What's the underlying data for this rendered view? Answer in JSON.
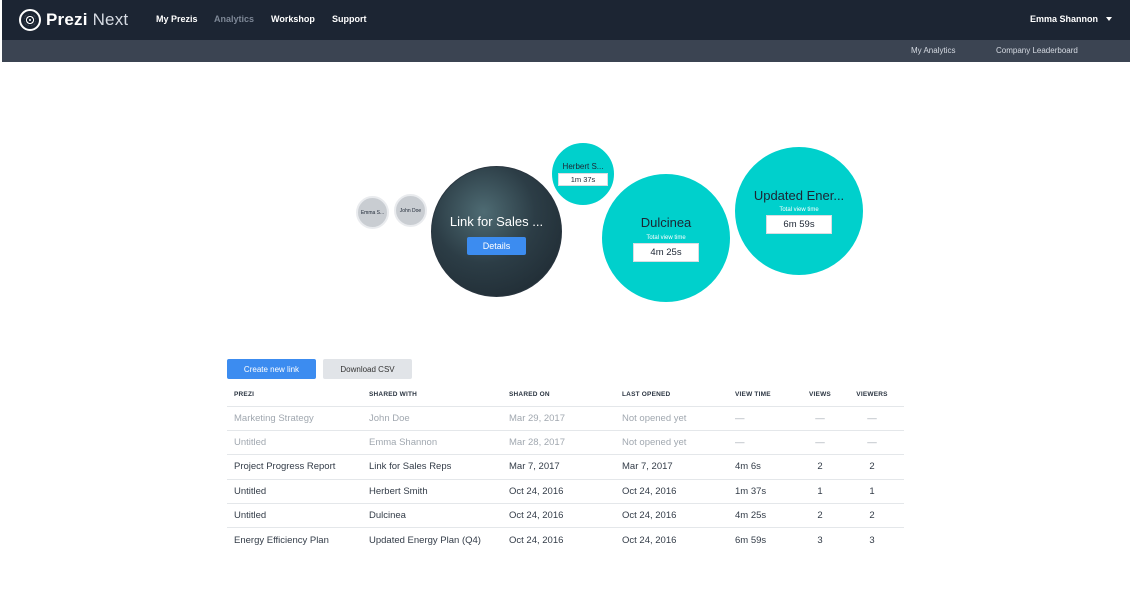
{
  "brand": {
    "name_bold": "Prezi",
    "name_light": "Next"
  },
  "nav": {
    "my_prezis": "My Prezis",
    "analytics": "Analytics",
    "workshop": "Workshop",
    "support": "Support"
  },
  "user": {
    "name": "Emma Shannon"
  },
  "subnav": {
    "my_analytics": "My Analytics",
    "leaderboard": "Company Leaderboard"
  },
  "bubbles": {
    "emma": "Emma S...",
    "john": "John Doe",
    "sales": {
      "title": "Link for Sales ...",
      "button": "Details"
    },
    "herbert": {
      "title": "Herbert S...",
      "time": "1m 37s"
    },
    "dulcinea": {
      "title": "Dulcinea",
      "label": "Total view time",
      "time": "4m 25s"
    },
    "energy": {
      "title": "Updated Ener...",
      "label": "Total view time",
      "time": "6m 59s"
    }
  },
  "actions": {
    "create_link": "Create new link",
    "download_csv": "Download CSV"
  },
  "table": {
    "headers": [
      "PREZI",
      "SHARED WITH",
      "SHARED ON",
      "LAST OPENED",
      "VIEW TIME",
      "VIEWS",
      "VIEWERS"
    ],
    "rows": [
      [
        "Marketing Strategy",
        "John Doe",
        "Mar 29, 2017",
        "Not opened yet",
        "—",
        "—",
        "—"
      ],
      [
        "Untitled",
        "Emma Shannon",
        "Mar 28, 2017",
        "Not opened yet",
        "—",
        "—",
        "—"
      ],
      [
        "Project Progress Report",
        "Link for Sales Reps",
        "Mar 7, 2017",
        "Mar 7, 2017",
        "4m 6s",
        "2",
        "2"
      ],
      [
        "Untitled",
        "Herbert Smith",
        "Oct 24, 2016",
        "Oct 24, 2016",
        "1m 37s",
        "1",
        "1"
      ],
      [
        "Untitled",
        "Dulcinea",
        "Oct 24, 2016",
        "Oct 24, 2016",
        "4m 25s",
        "2",
        "2"
      ],
      [
        "Energy Efficiency Plan",
        "Updated Energy Plan (Q4)",
        "Oct 24, 2016",
        "Oct 24, 2016",
        "6m 59s",
        "3",
        "3"
      ]
    ]
  }
}
